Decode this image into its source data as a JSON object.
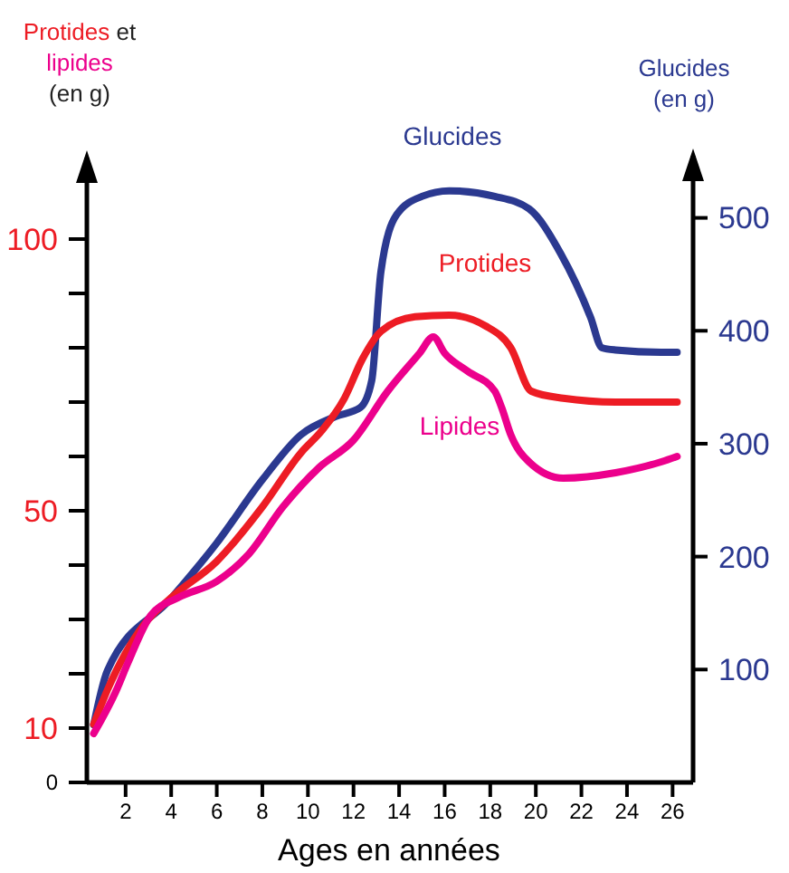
{
  "chart_data": {
    "type": "line",
    "xlabel": "Ages en années",
    "ylabel": "Protides et lipides (en g)",
    "y2label": "Glucides (en g)",
    "xlim": [
      0.3,
      26.9
    ],
    "xticks": [
      2,
      4,
      6,
      8,
      10,
      12,
      14,
      16,
      18,
      20,
      22,
      24,
      26
    ],
    "ylim": [
      0,
      115
    ],
    "yticks": [
      0,
      10,
      {
        "value": 20,
        "label": null
      },
      {
        "value": 30,
        "label": null
      },
      {
        "value": 40,
        "label": null
      },
      50,
      {
        "value": 60,
        "label": null
      },
      {
        "value": 70,
        "label": null
      },
      {
        "value": 80,
        "label": null
      },
      {
        "value": 90,
        "label": null
      },
      100
    ],
    "y2lim": [
      0,
      555
    ],
    "y2ticks": [
      100,
      200,
      300,
      400,
      500
    ],
    "grid": false,
    "marker": "none",
    "line_style": "solid",
    "series": [
      {
        "name": "Glucides",
        "color": "#2b3990",
        "axis": "y2",
        "x": [
          0.6,
          1.2,
          4,
          6,
          8,
          9.7,
          11.2,
          12.3,
          12.8,
          13.2,
          13.9,
          15,
          16.2,
          18.2,
          19.7,
          21.1,
          22.4,
          22.9,
          23.5,
          25.5,
          26.2
        ],
        "values": [
          51,
          99,
          163,
          212,
          268,
          308,
          324,
          332,
          356,
          452,
          503,
          519,
          524,
          519,
          508,
          468,
          412,
          385,
          383,
          381,
          381
        ]
      },
      {
        "name": "Protides",
        "color": "#ed1c24",
        "x": [
          0.6,
          1.2,
          2.8,
          4,
          6,
          8,
          9.7,
          10.6,
          11.6,
          12.4,
          13.2,
          14.7,
          16.2,
          17.8,
          18.9,
          19.8,
          21.2,
          23.5,
          25.5,
          26.2
        ],
        "values": [
          10.7,
          17,
          29,
          34,
          40.7,
          50.7,
          60.7,
          64.7,
          70.7,
          78,
          83,
          85.7,
          86,
          84,
          80,
          72,
          70.7,
          70,
          70,
          70
        ]
      },
      {
        "name": "Lipides",
        "color": "#ec008c",
        "x": [
          0.6,
          1.6,
          2.1,
          3.1,
          4.3,
          6,
          7.4,
          8.9,
          10.5,
          12,
          13.5,
          14.9,
          15.5,
          16,
          17,
          18.2,
          18.5,
          18.9,
          19.7,
          21.2,
          23.5,
          25.5,
          26.2
        ],
        "values": [
          9,
          17,
          22,
          30.7,
          34,
          37,
          42,
          50.7,
          58,
          63,
          72,
          79,
          82,
          79,
          75.7,
          72,
          69,
          64,
          59,
          56,
          57,
          59,
          60
        ]
      }
    ]
  }
}
